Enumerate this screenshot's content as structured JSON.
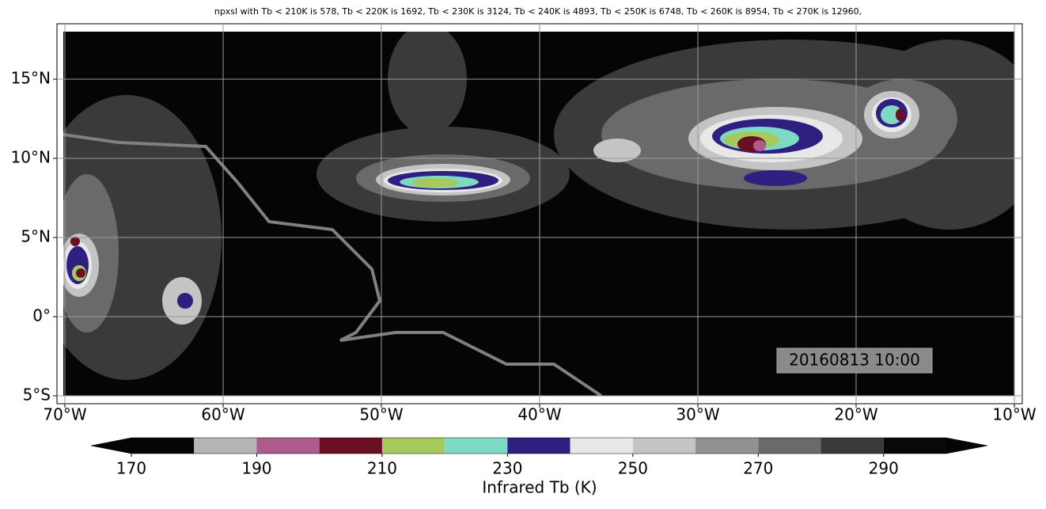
{
  "chart_data": {
    "type": "map",
    "title": "npxsl with Tb < 210K is 578,  Tb < 220K is 1692,  Tb < 230K is 3124,  Tb < 240K is 4893,  Tb < 250K is 6748,  Tb < 260K is 8954,  Tb < 270K is 12960,",
    "xlim": [
      -70.5,
      -9.5
    ],
    "ylim": [
      -5.5,
      18.5
    ],
    "xticks": [
      {
        "value": -70,
        "label": "70°W"
      },
      {
        "value": -60,
        "label": "60°W"
      },
      {
        "value": -50,
        "label": "50°W"
      },
      {
        "value": -40,
        "label": "40°W"
      },
      {
        "value": -30,
        "label": "30°W"
      },
      {
        "value": -20,
        "label": "20°W"
      },
      {
        "value": -10,
        "label": "10°W"
      }
    ],
    "yticks": [
      {
        "value": -5,
        "label": "5°S"
      },
      {
        "value": 0,
        "label": "0°"
      },
      {
        "value": 5,
        "label": "5°N"
      },
      {
        "value": 10,
        "label": "10°N"
      },
      {
        "value": 15,
        "label": "15°N"
      }
    ],
    "grid": true,
    "annotation": "20160813 10:00",
    "colorbar": {
      "label": "Infrared Tb (K)",
      "bounds": [
        170,
        180,
        190,
        200,
        210,
        220,
        230,
        240,
        250,
        260,
        270,
        280,
        290,
        300
      ],
      "colors": [
        "#050505",
        "#b5b5b5",
        "#ad5b8a",
        "#6b0f24",
        "#a6c95e",
        "#7dd9c4",
        "#2e1f80",
        "#e8e8e8",
        "#c4c4c4",
        "#919191",
        "#6a6a6a",
        "#3a3a3a",
        "#080808"
      ],
      "under_color": "#050505",
      "over_color": "#050505",
      "ticks": [
        170,
        190,
        210,
        230,
        250,
        270,
        290
      ]
    }
  }
}
